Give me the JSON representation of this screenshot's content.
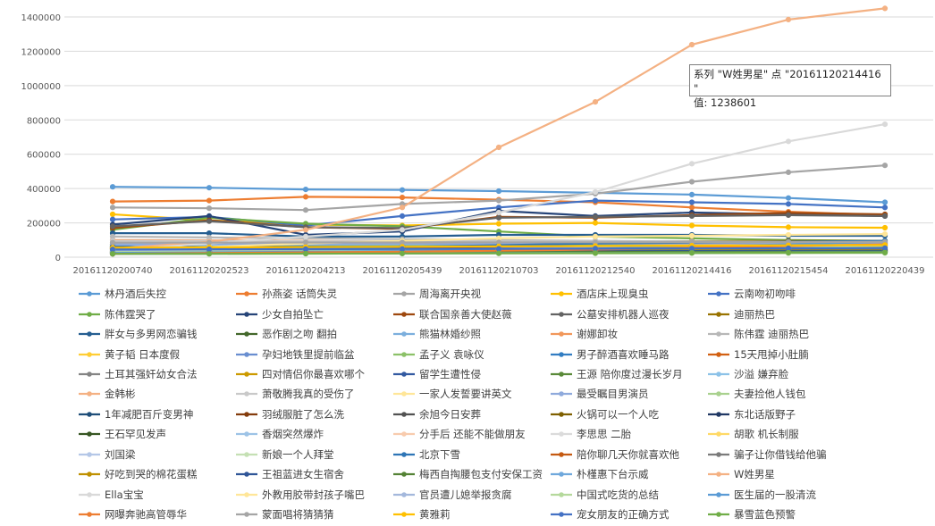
{
  "chart_data": {
    "type": "line",
    "x": [
      "20161120200740",
      "20161120202523",
      "20161120204213",
      "20161120205439",
      "20161120210703",
      "20161120212540",
      "20161120214416",
      "20161120215454",
      "20161120220439"
    ],
    "ylim": [
      0,
      1400000
    ],
    "yticks": [
      "0",
      "200000",
      "400000",
      "600000",
      "800000",
      "1000000",
      "1200000",
      "1400000"
    ],
    "grid": true,
    "legend_position": "bottom",
    "series": [
      {
        "name": "林丹酒后失控",
        "color": "#5b9bd5",
        "values": [
          410000,
          405000,
          395000,
          392000,
          385000,
          375000,
          365000,
          345000,
          320000
        ]
      },
      {
        "name": "孙燕姿 话筒失灵",
        "color": "#ed7d31",
        "values": [
          325000,
          330000,
          352000,
          348000,
          335000,
          320000,
          290000,
          265000,
          245000
        ]
      },
      {
        "name": "周海离开央视",
        "color": "#a5a5a5",
        "values": [
          290000,
          285000,
          275000,
          310000,
          330000,
          370000,
          440000,
          495000,
          535000
        ]
      },
      {
        "name": "酒店床上现臭虫",
        "color": "#ffc000",
        "values": [
          250000,
          215000,
          190000,
          185000,
          195000,
          200000,
          185000,
          175000,
          172000
        ]
      },
      {
        "name": "云南吻初吻啡",
        "color": "#4472c4",
        "values": [
          220000,
          235000,
          185000,
          240000,
          290000,
          330000,
          320000,
          310000,
          290000
        ]
      },
      {
        "name": "陈伟霆哭了",
        "color": "#70ad47",
        "values": [
          160000,
          230000,
          195000,
          180000,
          150000,
          120000,
          110000,
          100000,
          95000
        ]
      },
      {
        "name": "少女自拍坠亡",
        "color": "#264478",
        "values": [
          190000,
          240000,
          130000,
          150000,
          270000,
          240000,
          260000,
          250000,
          240000
        ]
      },
      {
        "name": "联合国亲善大使赵薇",
        "color": "#9e480e",
        "values": [
          170000,
          215000,
          175000,
          165000,
          235000,
          230000,
          245000,
          258000,
          250000
        ]
      },
      {
        "name": "公墓安排机器人巡夜",
        "color": "#636363",
        "values": [
          180000,
          210000,
          175000,
          170000,
          230000,
          235000,
          240000,
          245000,
          240000
        ]
      },
      {
        "name": "迪丽热巴",
        "color": "#997300",
        "values": [
          75000,
          80000,
          85000,
          90000,
          90000,
          92000,
          93000,
          95000,
          95000
        ]
      },
      {
        "name": "胖女与多男网恋骗钱",
        "color": "#255e91",
        "values": [
          140000,
          140000,
          120000,
          120000,
          130000,
          130000,
          130000,
          125000,
          125000
        ]
      },
      {
        "name": "恶作剧之吻 翻拍",
        "color": "#43682b",
        "values": [
          55000,
          60000,
          65000,
          65000,
          68000,
          70000,
          70000,
          72000,
          72000
        ]
      },
      {
        "name": "熊猫林婚纱照",
        "color": "#7cafdd",
        "values": [
          30000,
          30000,
          30000,
          32000,
          40000,
          50000,
          60000,
          70000,
          80000
        ]
      },
      {
        "name": "谢娜卸妆",
        "color": "#f1975a",
        "values": [
          100000,
          98000,
          95000,
          90000,
          85000,
          82000,
          80000,
          78000,
          76000
        ]
      },
      {
        "name": "陈伟霆 迪丽热巴",
        "color": "#b7b7b7",
        "values": [
          120000,
          115000,
          110000,
          105000,
          100000,
          95000,
          92000,
          90000,
          88000
        ]
      },
      {
        "name": "黄子韬 日本度假",
        "color": "#ffcd33",
        "values": [
          45000,
          50000,
          55000,
          60000,
          65000,
          70000,
          75000,
          80000,
          85000
        ]
      },
      {
        "name": "孕妇地铁里提前临盆",
        "color": "#698ed0",
        "values": [
          65000,
          66000,
          67000,
          68000,
          70000,
          72000,
          74000,
          76000,
          78000
        ]
      },
      {
        "name": "孟子义 袁咏仪",
        "color": "#8cc168",
        "values": [
          60000,
          62000,
          64000,
          66000,
          68000,
          70000,
          72000,
          74000,
          76000
        ]
      },
      {
        "name": "男子醉酒喜欢睡马路",
        "color": "#327dc2",
        "values": [
          35000,
          38000,
          40000,
          42000,
          45000,
          50000,
          55000,
          60000,
          65000
        ]
      },
      {
        "name": "15天甩掉小肚腩",
        "color": "#d26012",
        "values": [
          50000,
          52000,
          54000,
          55000,
          57000,
          58000,
          60000,
          62000,
          63000
        ]
      },
      {
        "name": "土耳其强奸幼女合法",
        "color": "#848484",
        "values": [
          40000,
          42000,
          44000,
          46000,
          48000,
          50000,
          52000,
          54000,
          56000
        ]
      },
      {
        "name": "四对情侣你最喜欢哪个",
        "color": "#cc9a00",
        "values": [
          30000,
          32000,
          34000,
          36000,
          38000,
          40000,
          42000,
          44000,
          46000
        ]
      },
      {
        "name": "留学生遭性侵",
        "color": "#335aa1",
        "values": [
          25000,
          27000,
          29000,
          31000,
          33000,
          35000,
          37000,
          39000,
          41000
        ]
      },
      {
        "name": "王源 陪你度过漫长岁月",
        "color": "#5a8a39",
        "values": [
          20000,
          22000,
          24000,
          26000,
          28000,
          30000,
          32000,
          34000,
          36000
        ]
      },
      {
        "name": "沙溢 嫌弃脸",
        "color": "#8cc2e8",
        "values": [
          70000,
          72000,
          74000,
          76000,
          78000,
          80000,
          82000,
          84000,
          86000
        ]
      },
      {
        "name": "金韩彬",
        "color": "#f4b183",
        "values": [
          85000,
          84000,
          83000,
          82000,
          81000,
          80000,
          79000,
          78000,
          77000
        ]
      },
      {
        "name": "萧敬腾我真的受伤了",
        "color": "#c9c9c9",
        "values": [
          95000,
          94000,
          93000,
          92000,
          91000,
          90000,
          89000,
          88000,
          87000
        ]
      },
      {
        "name": "一家人发誓要讲英文",
        "color": "#ffe699",
        "values": [
          55000,
          56000,
          57000,
          58000,
          59000,
          60000,
          61000,
          62000,
          63000
        ]
      },
      {
        "name": "最受瞩目男演员",
        "color": "#8faadc",
        "values": [
          75000,
          76000,
          77000,
          78000,
          79000,
          80000,
          81000,
          82000,
          83000
        ]
      },
      {
        "name": "夫妻捡他人钱包",
        "color": "#a9d18e",
        "values": [
          45000,
          46000,
          47000,
          48000,
          49000,
          50000,
          51000,
          52000,
          53000
        ]
      },
      {
        "name": "1年减肥百斤变男神",
        "color": "#1f4e79",
        "values": [
          60000,
          60000,
          61000,
          61000,
          62000,
          62000,
          63000,
          63000,
          64000
        ]
      },
      {
        "name": "羽绒服脏了怎么洗",
        "color": "#843c0c",
        "values": [
          50000,
          50000,
          51000,
          51000,
          52000,
          52000,
          53000,
          53000,
          54000
        ]
      },
      {
        "name": "余旭今日安葬",
        "color": "#525252",
        "values": [
          40000,
          40000,
          41000,
          41000,
          42000,
          42000,
          43000,
          43000,
          44000
        ]
      },
      {
        "name": "火锅可以一个人吃",
        "color": "#7f6000",
        "values": [
          35000,
          35000,
          36000,
          36000,
          37000,
          37000,
          38000,
          38000,
          39000
        ]
      },
      {
        "name": "东北话版野子",
        "color": "#203864",
        "values": [
          30000,
          30000,
          31000,
          31000,
          32000,
          32000,
          33000,
          33000,
          34000
        ]
      },
      {
        "name": "王石罕见发声",
        "color": "#375623",
        "values": [
          25000,
          25000,
          26000,
          26000,
          27000,
          27000,
          28000,
          28000,
          29000
        ]
      },
      {
        "name": "香烟突然爆炸",
        "color": "#9dc3e6",
        "values": [
          45000,
          45000,
          46000,
          46000,
          47000,
          47000,
          48000,
          48000,
          49000
        ]
      },
      {
        "name": "分手后 还能不能做朋友",
        "color": "#f8cbad",
        "values": [
          40000,
          40000,
          41000,
          41000,
          42000,
          42000,
          43000,
          43000,
          44000
        ]
      },
      {
        "name": "李思思 二胎",
        "color": "#dbdbdb",
        "values": [
          35000,
          35000,
          36000,
          36000,
          37000,
          37000,
          38000,
          38000,
          39000
        ]
      },
      {
        "name": "胡歌 机长制服",
        "color": "#ffd966",
        "values": [
          30000,
          30000,
          31000,
          31000,
          32000,
          32000,
          33000,
          33000,
          34000
        ]
      },
      {
        "name": "刘国梁",
        "color": "#b4c7e7",
        "values": [
          25000,
          25000,
          26000,
          26000,
          27000,
          27000,
          28000,
          28000,
          29000
        ]
      },
      {
        "name": "新娘一个人拜堂",
        "color": "#c5e0b4",
        "values": [
          20000,
          20000,
          21000,
          21000,
          22000,
          22000,
          23000,
          23000,
          24000
        ]
      },
      {
        "name": "北京下雪",
        "color": "#2e75b6",
        "values": [
          30000,
          35000,
          50000,
          60000,
          70000,
          80000,
          85000,
          90000,
          95000
        ]
      },
      {
        "name": "陪你聊几天你就喜欢他",
        "color": "#c55a11",
        "values": [
          25000,
          26000,
          27000,
          28000,
          29000,
          30000,
          31000,
          32000,
          33000
        ]
      },
      {
        "name": "骗子让你借钱给他骗",
        "color": "#7b7b7b",
        "values": [
          20000,
          21000,
          22000,
          23000,
          24000,
          25000,
          26000,
          27000,
          28000
        ]
      },
      {
        "name": "好吃到哭的棉花蛋糕",
        "color": "#bf9000",
        "values": [
          35000,
          36000,
          37000,
          38000,
          39000,
          40000,
          41000,
          42000,
          43000
        ]
      },
      {
        "name": "王祖蓝进女生宿舍",
        "color": "#2f5597",
        "values": [
          30000,
          31000,
          32000,
          33000,
          34000,
          35000,
          36000,
          37000,
          38000
        ]
      },
      {
        "name": "梅西自掏腰包支付安保工资",
        "color": "#548235",
        "values": [
          25000,
          26000,
          27000,
          28000,
          29000,
          30000,
          31000,
          32000,
          33000
        ]
      },
      {
        "name": "朴槿惠下台示威",
        "color": "#6fa8dc",
        "values": [
          20000,
          21000,
          22000,
          23000,
          24000,
          25000,
          26000,
          27000,
          28000
        ]
      },
      {
        "name": "W姓男星",
        "color": "#f4b183",
        "values": [
          50000,
          90000,
          160000,
          290000,
          640000,
          905000,
          1238601,
          1385000,
          1450000
        ]
      },
      {
        "name": "Ella宝宝",
        "color": "#d9d9d9",
        "values": [
          40000,
          80000,
          120000,
          160000,
          260000,
          380000,
          545000,
          675000,
          775000
        ]
      },
      {
        "name": "外教用胶带封孩子嘴巴",
        "color": "#ffe699",
        "values": [
          45000,
          60000,
          80000,
          95000,
          110000,
          120000,
          125000,
          130000,
          135000
        ]
      },
      {
        "name": "官员遭儿媳举报贪腐",
        "color": "#a4b8dc",
        "values": [
          35000,
          38000,
          42000,
          46000,
          50000,
          55000,
          60000,
          65000,
          70000
        ]
      },
      {
        "name": "中国式吃货的总结",
        "color": "#b5d99c",
        "values": [
          30000,
          33000,
          36000,
          40000,
          45000,
          50000,
          55000,
          60000,
          65000
        ]
      },
      {
        "name": "医生届的一股清流",
        "color": "#5b9bd5",
        "values": [
          25000,
          28000,
          32000,
          36000,
          42000,
          50000,
          62000,
          75000,
          90000
        ]
      },
      {
        "name": "网曝奔驰高管辱华",
        "color": "#ed7d31",
        "values": [
          20000,
          24000,
          28000,
          32000,
          38000,
          45000,
          55000,
          65000,
          75000
        ]
      },
      {
        "name": "蒙面唱将猜猜猜",
        "color": "#a5a5a5",
        "values": [
          85000,
          85000,
          86000,
          86000,
          87000,
          87000,
          88000,
          88000,
          89000
        ]
      },
      {
        "name": "黄雅莉",
        "color": "#ffc000",
        "values": [
          55000,
          57000,
          59000,
          61000,
          63000,
          65000,
          67000,
          69000,
          71000
        ]
      },
      {
        "name": "宠女朋友的正确方式",
        "color": "#4472c4",
        "values": [
          45000,
          46000,
          47000,
          48000,
          49000,
          50000,
          51000,
          52000,
          53000
        ]
      },
      {
        "name": "暴雪蓝色预警",
        "color": "#70ad47",
        "values": [
          20000,
          20000,
          21000,
          22000,
          23000,
          24000,
          25000,
          26000,
          27000
        ]
      }
    ],
    "tooltip": {
      "line1": "系列 \"W姓男星\" 点 \"20161120214416 \"",
      "line2": "值: 1238601"
    }
  }
}
